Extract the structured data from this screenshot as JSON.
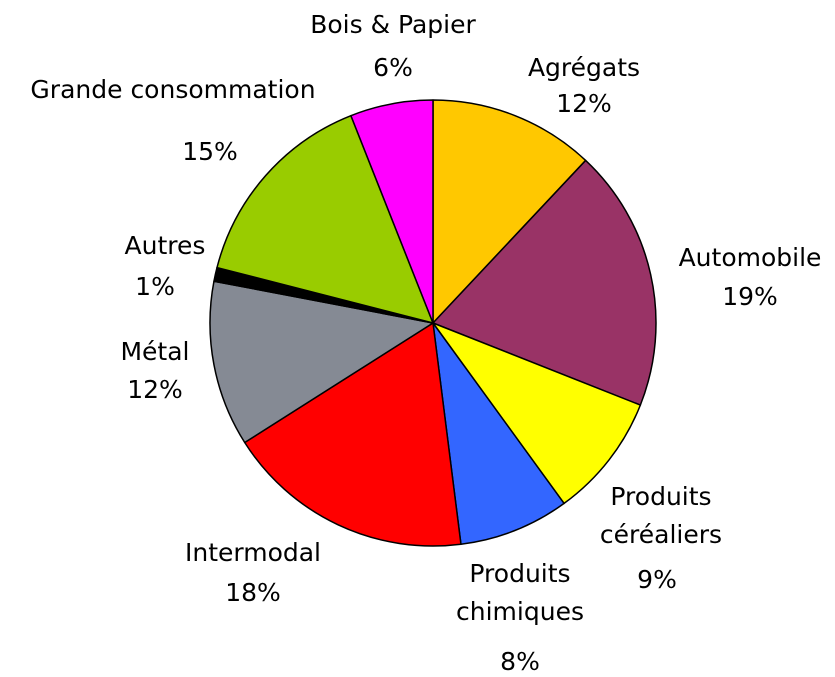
{
  "chart_data": {
    "type": "pie",
    "categories": [
      "Agrégats",
      "Automobile",
      "Produits céréaliers",
      "Produits chimiques",
      "Intermodal",
      "Métal",
      "Autres",
      "Grande consommation",
      "Bois & Papier"
    ],
    "values": [
      12,
      19,
      9,
      8,
      18,
      12,
      1,
      15,
      6
    ],
    "value_labels": [
      "12%",
      "19%",
      "9%",
      "8%",
      "18%",
      "12%",
      "1%",
      "15%",
      "6%"
    ],
    "colors": [
      "#FFC800",
      "#993366",
      "#FFFF00",
      "#3366FF",
      "#FF0000",
      "#858A94",
      "#000000",
      "#99CC00",
      "#FF00FF"
    ]
  }
}
